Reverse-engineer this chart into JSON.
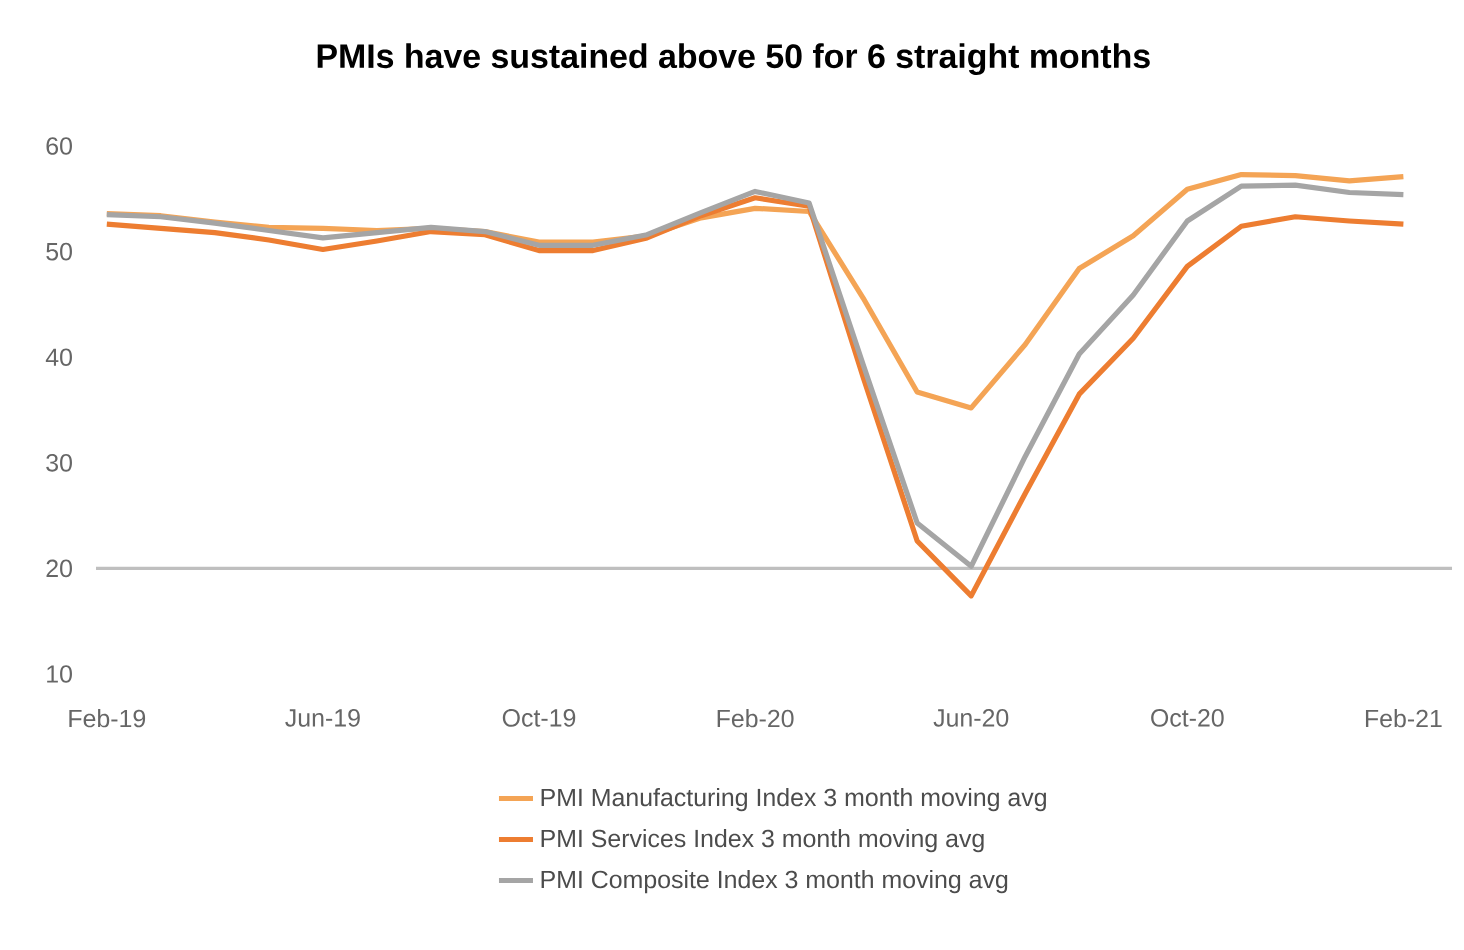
{
  "chart_data": {
    "type": "line",
    "title": "PMIs have sustained above 50 for 6 straight months",
    "categories": [
      "Feb-19",
      null,
      null,
      null,
      "Jun-19",
      null,
      null,
      null,
      "Oct-19",
      null,
      null,
      null,
      "Feb-20",
      null,
      null,
      null,
      "Jun-20",
      null,
      null,
      null,
      "Oct-20",
      null,
      null,
      null,
      "Feb-21"
    ],
    "ylim": [
      10,
      60
    ],
    "yticks": [
      10,
      20,
      30,
      40,
      50,
      60
    ],
    "legend": "bottom",
    "ref_lines": [
      {
        "axis": "y",
        "value": 20,
        "color": "#bfbfbf"
      }
    ],
    "series": [
      {
        "name": "PMI Manufacturing Index 3 month moving avg",
        "color": "#f4a455",
        "values": [
          53.6,
          53.4,
          52.8,
          52.3,
          52.2,
          52.0,
          52.2,
          51.9,
          50.9,
          50.9,
          51.5,
          53.2,
          54.1,
          53.8,
          45.6,
          36.7,
          35.2,
          41.2,
          48.4,
          51.5,
          55.9,
          57.3,
          57.2,
          56.7,
          57.1
        ]
      },
      {
        "name": "PMI Services Index 3 month moving avg",
        "color": "#ed7d31",
        "values": [
          52.6,
          52.2,
          51.8,
          51.1,
          50.2,
          51.0,
          51.9,
          51.6,
          50.1,
          50.1,
          51.3,
          53.4,
          55.1,
          54.3,
          38.1,
          22.6,
          17.4,
          27.1,
          36.5,
          41.8,
          48.6,
          52.4,
          53.3,
          52.9,
          52.6
        ]
      },
      {
        "name": "PMI Composite Index 3 month moving avg",
        "color": "#a5a5a5",
        "values": [
          53.5,
          53.3,
          52.7,
          52.0,
          51.3,
          51.8,
          52.3,
          51.9,
          50.6,
          50.6,
          51.6,
          53.7,
          55.7,
          54.6,
          39.3,
          24.3,
          20.2,
          30.6,
          40.3,
          45.9,
          52.9,
          56.2,
          56.3,
          55.6,
          55.4
        ]
      }
    ]
  }
}
